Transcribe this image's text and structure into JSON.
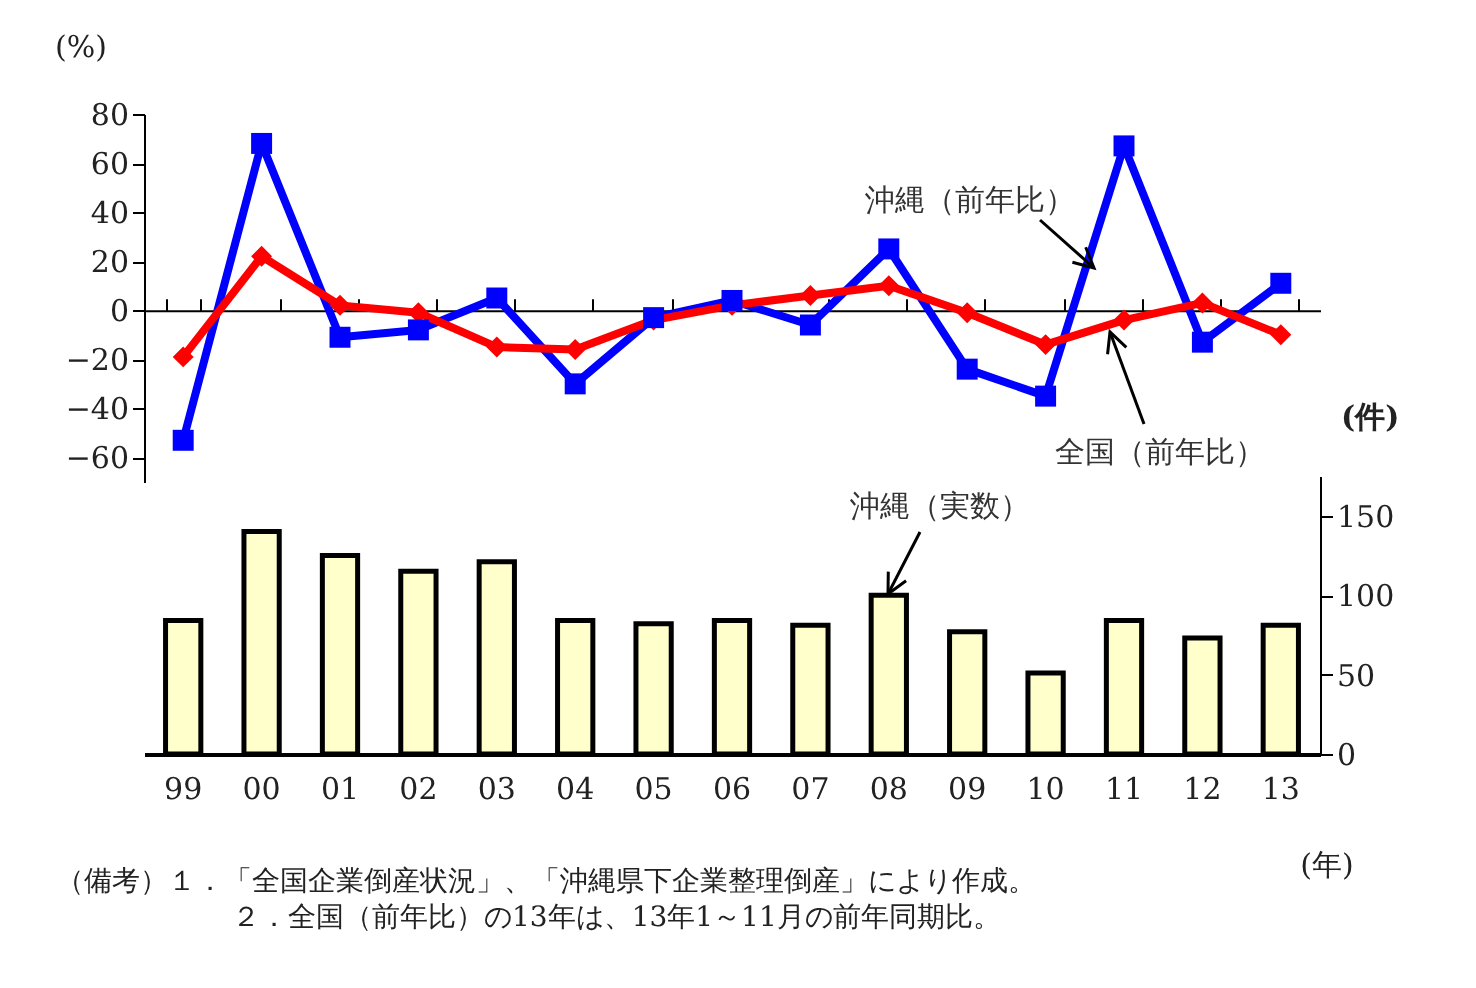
{
  "chart_data": [
    {
      "type": "line",
      "categories": [
        "99",
        "00",
        "01",
        "02",
        "03",
        "04",
        "05",
        "06",
        "07",
        "08",
        "09",
        "10",
        "11",
        "12",
        "13"
      ],
      "series": [
        {
          "name": "沖縄（前年比）",
          "color": "#0000ff",
          "marker": "square",
          "values": [
            -53,
            68,
            -11,
            -8,
            5,
            -30,
            -3,
            4,
            -6,
            25,
            -24,
            -35,
            67,
            -13,
            11
          ]
        },
        {
          "name": "全国（前年比）",
          "color": "#ff0000",
          "marker": "diamond",
          "values": [
            -19,
            22,
            2,
            -1,
            -15,
            -16,
            -4,
            2,
            6,
            10,
            -1,
            -14,
            -4,
            3,
            -10
          ]
        }
      ],
      "ylabel": "(%)",
      "ylim": [
        -70,
        80
      ],
      "yticks": [
        -60,
        -40,
        -20,
        0,
        20,
        40,
        60,
        80
      ],
      "tick_labels": "y"
    },
    {
      "type": "bar",
      "categories": [
        "99",
        "00",
        "01",
        "02",
        "03",
        "04",
        "05",
        "06",
        "07",
        "08",
        "09",
        "10",
        "11",
        "12",
        "13"
      ],
      "series": [
        {
          "name": "沖縄（実数）",
          "color": "#ffffcc",
          "values": [
            84,
            140,
            125,
            115,
            121,
            84,
            82,
            84,
            81,
            100,
            77,
            51,
            84,
            73,
            81
          ]
        }
      ],
      "ylabel": "(件)",
      "xlabel": "(年)",
      "ylim": [
        0,
        175
      ],
      "yticks": [
        0,
        50,
        100,
        150
      ],
      "annotations": [
        "（備考）１．「全国企業倒産状況」、「沖縄県下企業整理倒産」により作成。",
        "２．全国（前年比）の13年は、13年1～11月の前年同期比。"
      ]
    }
  ]
}
